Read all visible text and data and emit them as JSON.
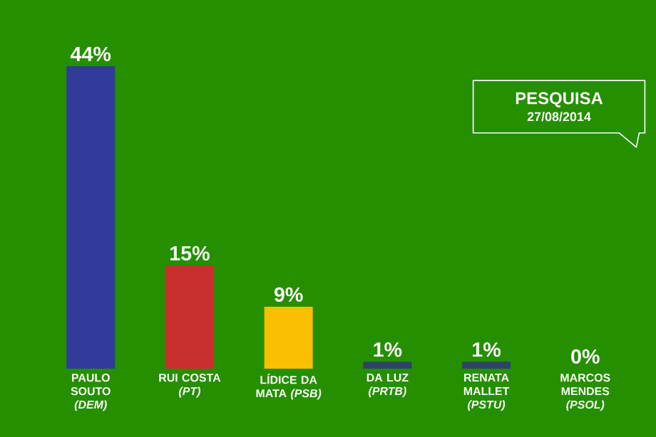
{
  "chart_data": {
    "type": "bar",
    "title": "PESQUISA",
    "subtitle": "27/08/2014",
    "categories": [
      "PAULO SOUTO *(DEM)*",
      "RUI COSTA *(PT)*",
      "LÍDICE DA MATA *(PSB)*",
      "DA LUZ *(PRTB)*",
      "RENATA MALLET *(PSTU)*",
      "MARCOS MENDES *(PSOL)*"
    ],
    "values": [
      44,
      15,
      9,
      1,
      1,
      0
    ],
    "value_labels": [
      "44%",
      "15%",
      "9%",
      "1%",
      "1%",
      "0%"
    ],
    "colors": [
      "#323a9a",
      "#c83030",
      "#f9bf00",
      "#2e4468",
      "#2e4468",
      "#2e4468"
    ]
  }
}
